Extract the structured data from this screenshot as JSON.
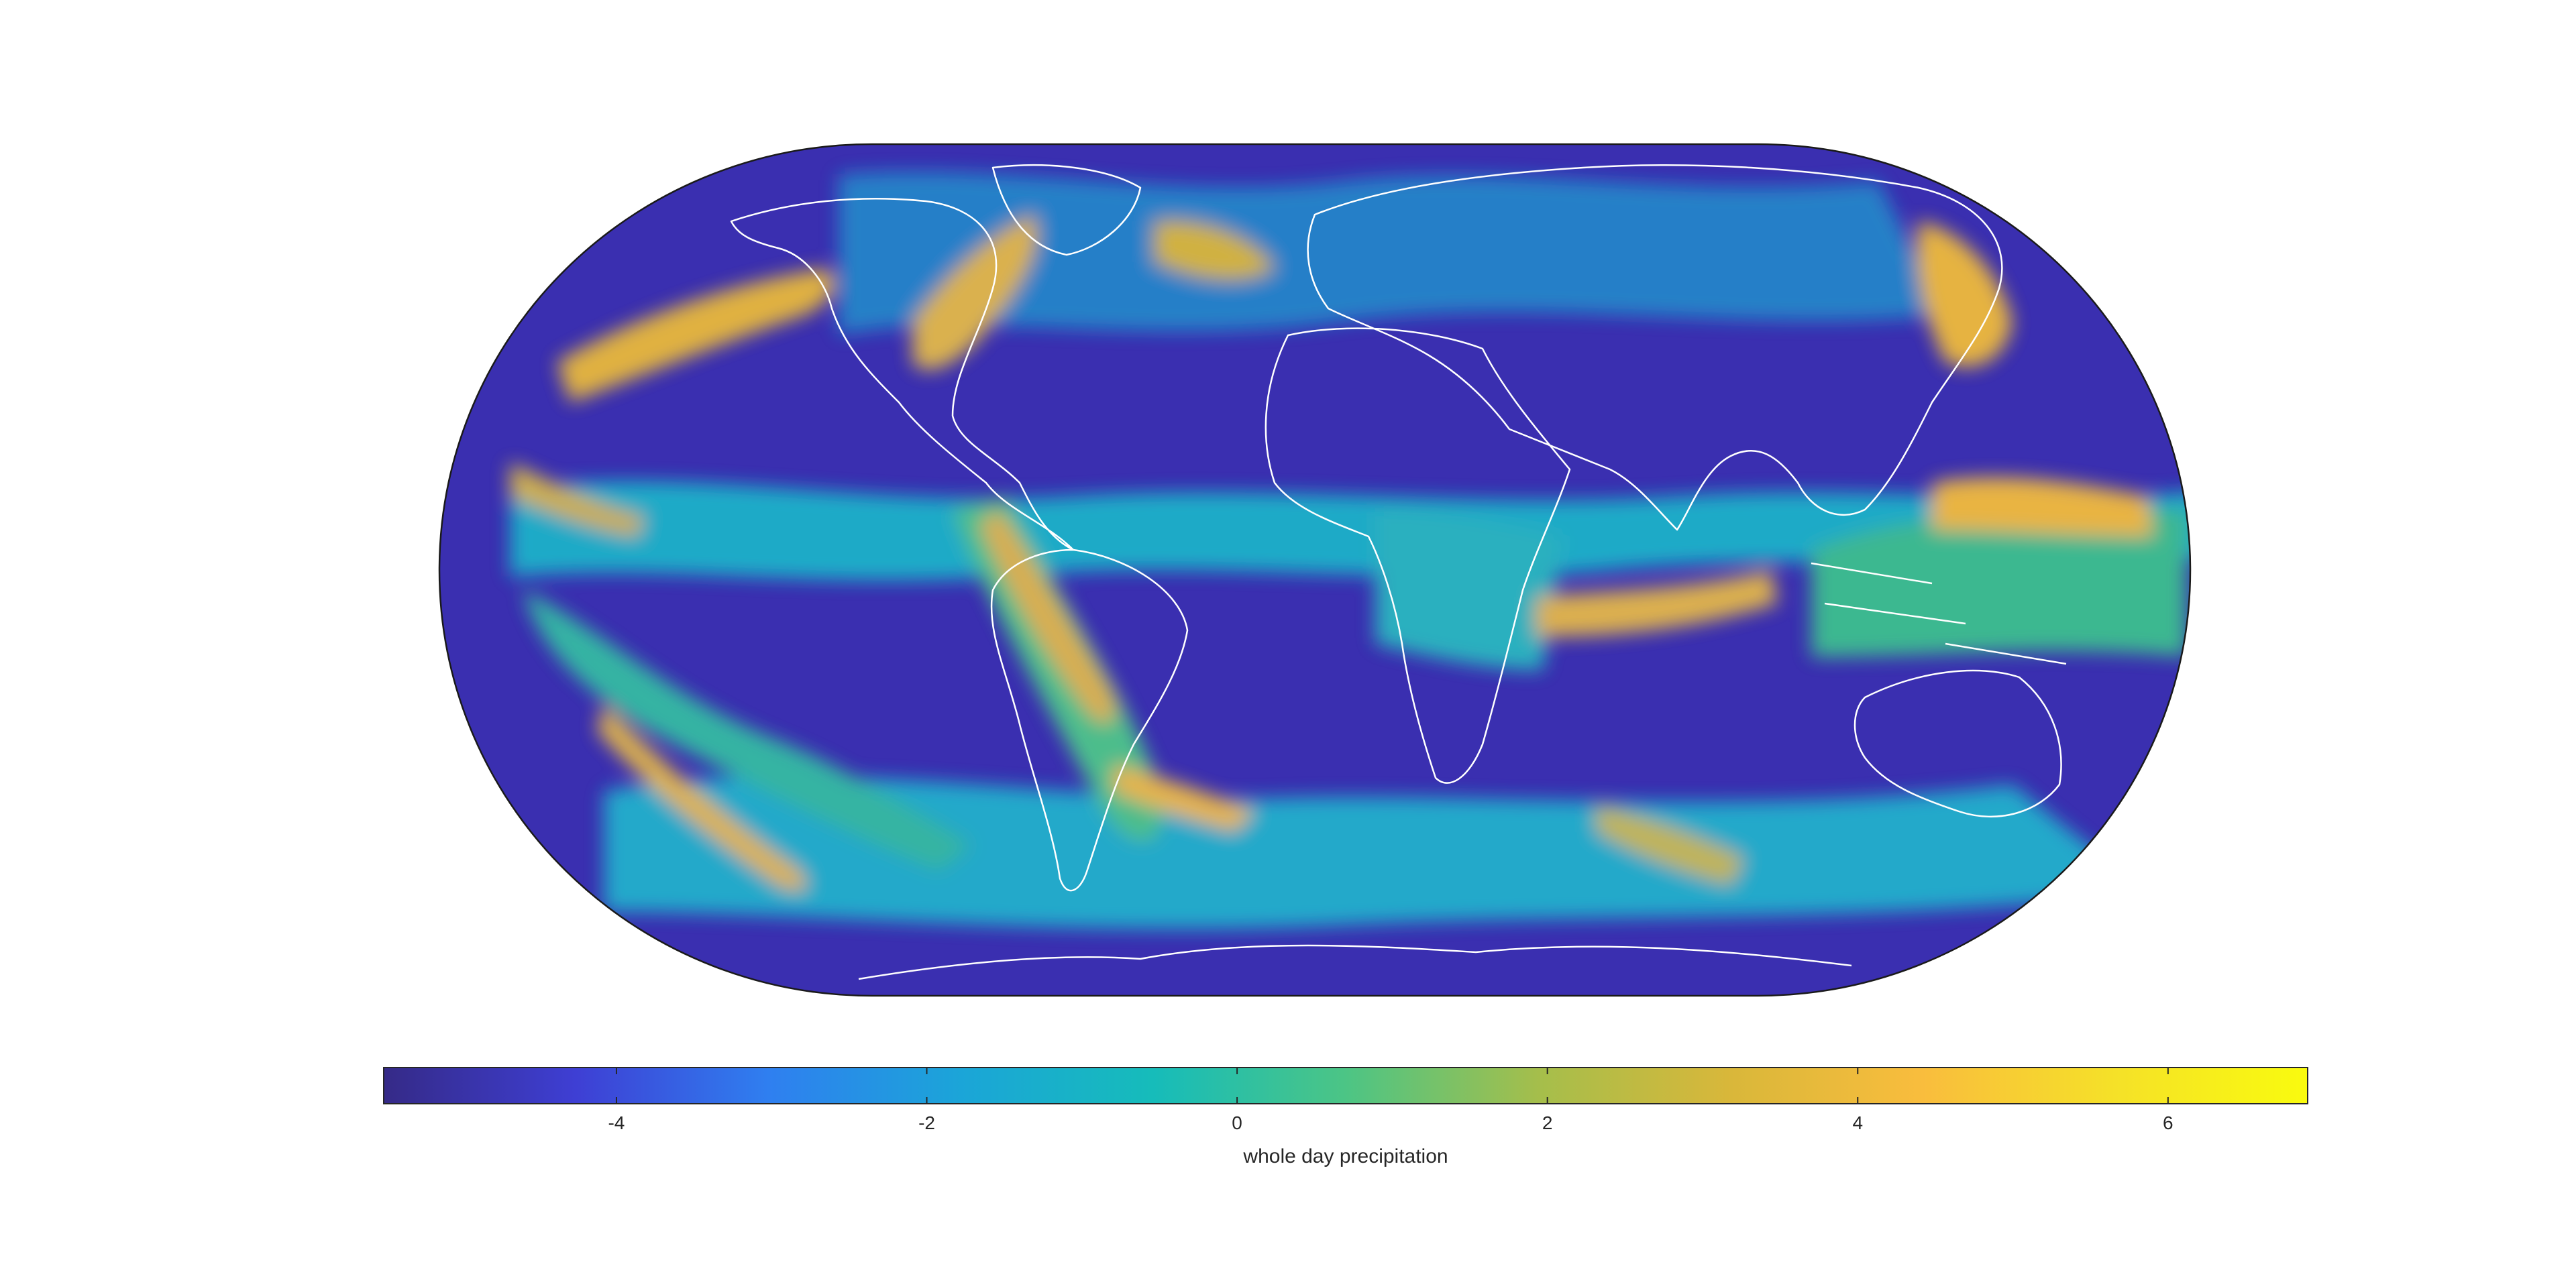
{
  "map": {
    "projection": "Eckert IV",
    "background_value_color": "#3a2fb0",
    "coastline_color": "#ffffff",
    "frame_color": "#1a1a1a"
  },
  "colorbar": {
    "label": "whole day precipitation",
    "range": [
      -5.5,
      6.9
    ],
    "ticks": [
      -4,
      -2,
      0,
      2,
      4,
      6
    ],
    "tick_labels": [
      "-4",
      "-2",
      "0",
      "2",
      "4",
      "6"
    ],
    "colormap": "parula",
    "colors": [
      "#352a87",
      "#3e3fd4",
      "#2f7ff0",
      "#1ba5d8",
      "#16bcba",
      "#4cc585",
      "#a5be4b",
      "#d9b73a",
      "#f9bd3d",
      "#f5e128",
      "#f9fb0e"
    ]
  }
}
